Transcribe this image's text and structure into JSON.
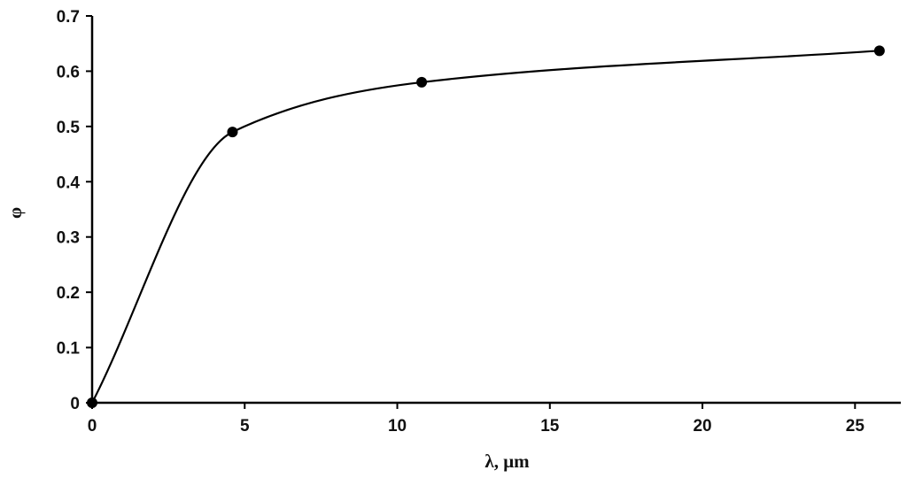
{
  "chart_data": {
    "type": "scatter",
    "title": "",
    "xlabel": "λ, μm",
    "ylabel": "φ",
    "xlim": [
      0,
      26.5
    ],
    "ylim": [
      0,
      0.7
    ],
    "xticks": [
      0,
      5,
      10,
      15,
      20,
      25
    ],
    "yticks": [
      0,
      0.1,
      0.2,
      0.3,
      0.4,
      0.5,
      0.6,
      0.7
    ],
    "xtick_labels": [
      "0",
      "5",
      "10",
      "15",
      "20",
      "25"
    ],
    "ytick_labels": [
      "0",
      "0.1",
      "0.2",
      "0.3",
      "0.4",
      "0.5",
      "0.6",
      "0.7"
    ],
    "grid": false,
    "legend": "none",
    "smooth_line": true,
    "series": [
      {
        "x": [
          0,
          4.6,
          10.8,
          25.8
        ],
        "y": [
          0,
          0.49,
          0.58,
          0.637
        ],
        "color": "#000000"
      }
    ]
  }
}
